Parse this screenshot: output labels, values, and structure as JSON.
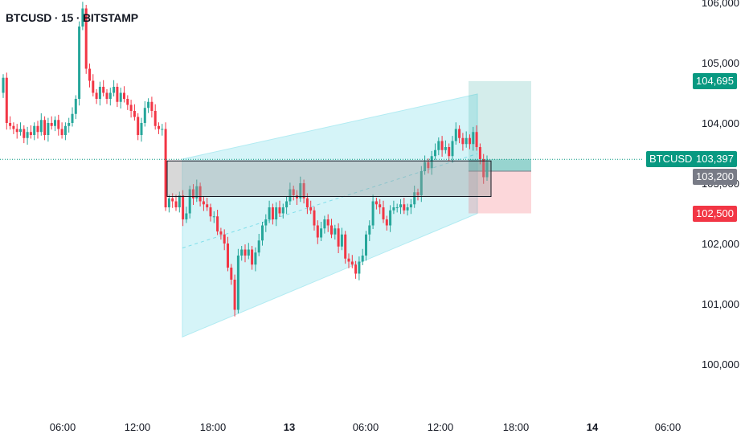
{
  "header": {
    "title": "BTCUSD · 15 · BITSTAMP"
  },
  "price_tags": {
    "symbol": "BTCUSD",
    "current": "103,397",
    "entry": "103,200",
    "target": "104,695",
    "stop": "102,500"
  },
  "colors": {
    "up": "#26a69a",
    "down": "#f23645",
    "channel": "#b2ebf2",
    "zone": "#9e9e9e",
    "profit": "#26a69a",
    "loss": "#f23645",
    "tag_current": "#089981",
    "tag_entry": "#787b86",
    "tag_stop": "#f23645"
  },
  "chart_data": {
    "type": "candlestick",
    "symbol": "BTCUSD",
    "interval": "15",
    "exchange": "BITSTAMP",
    "ylim": [
      99500,
      106000
    ],
    "y_ticks": [
      100000,
      101000,
      102000,
      103000,
      104000,
      105000,
      106000
    ],
    "y_tick_labels": [
      "100,000",
      "101,000",
      "102,000",
      "103,000",
      "104,000",
      "105,000",
      "106,000"
    ],
    "x_tick_labels": [
      "06:00",
      "12:00",
      "18:00",
      "13",
      "06:00",
      "12:00",
      "18:00",
      "14",
      "06:00"
    ],
    "x_tick_bold": [
      false,
      false,
      false,
      true,
      false,
      false,
      false,
      true,
      false
    ],
    "current_price": 103397,
    "candles_close": [
      104750,
      104000,
      103950,
      103900,
      103850,
      103900,
      103750,
      103850,
      103800,
      103950,
      103850,
      104050,
      103800,
      104000,
      103950,
      104050,
      103900,
      103800,
      103950,
      104000,
      104150,
      104400,
      105600,
      105900,
      104900,
      104700,
      104500,
      104400,
      104600,
      104500,
      104400,
      104500,
      104600,
      104350,
      104500,
      104400,
      104300,
      104200,
      104100,
      103800,
      104000,
      104250,
      104350,
      104200,
      103950,
      103900,
      103900,
      102600,
      102750,
      102700,
      102600,
      102800,
      102400,
      102500,
      102900,
      102750,
      102950,
      102700,
      102650,
      102600,
      102450,
      102450,
      102200,
      102150,
      102000,
      101600,
      101400,
      100900,
      101800,
      101900,
      101800,
      101900,
      101650,
      101850,
      102050,
      102300,
      102400,
      102600,
      102400,
      102600,
      102500,
      102600,
      102700,
      102900,
      102800,
      102750,
      103000,
      102750,
      102600,
      102550,
      102300,
      102100,
      102250,
      102400,
      102300,
      102150,
      102250,
      101950,
      102150,
      101750,
      101700,
      101650,
      101500,
      101700,
      101800,
      102150,
      102300,
      102700,
      102650,
      102600,
      102400,
      102300,
      102550,
      102600,
      102600,
      102650,
      102550,
      102600,
      102650,
      102850,
      102800,
      103200,
      103350,
      103250,
      103450,
      103550,
      103700,
      103550,
      103600,
      103450,
      103700,
      103900,
      103750,
      103650,
      103750,
      103650,
      103850,
      103600,
      103400,
      103100,
      103350
    ],
    "entry_zone": {
      "top": 103370,
      "bottom": 102780
    },
    "channel": {
      "upper": [
        [
          103400,
          102980
        ],
        [
          104480,
          103760
        ]
      ],
      "lower": [
        [
          100450,
          100050
        ],
        [
          102500,
          102230
        ]
      ]
    },
    "position": {
      "entry": 103200,
      "target": 104695,
      "stop": 102500
    }
  }
}
